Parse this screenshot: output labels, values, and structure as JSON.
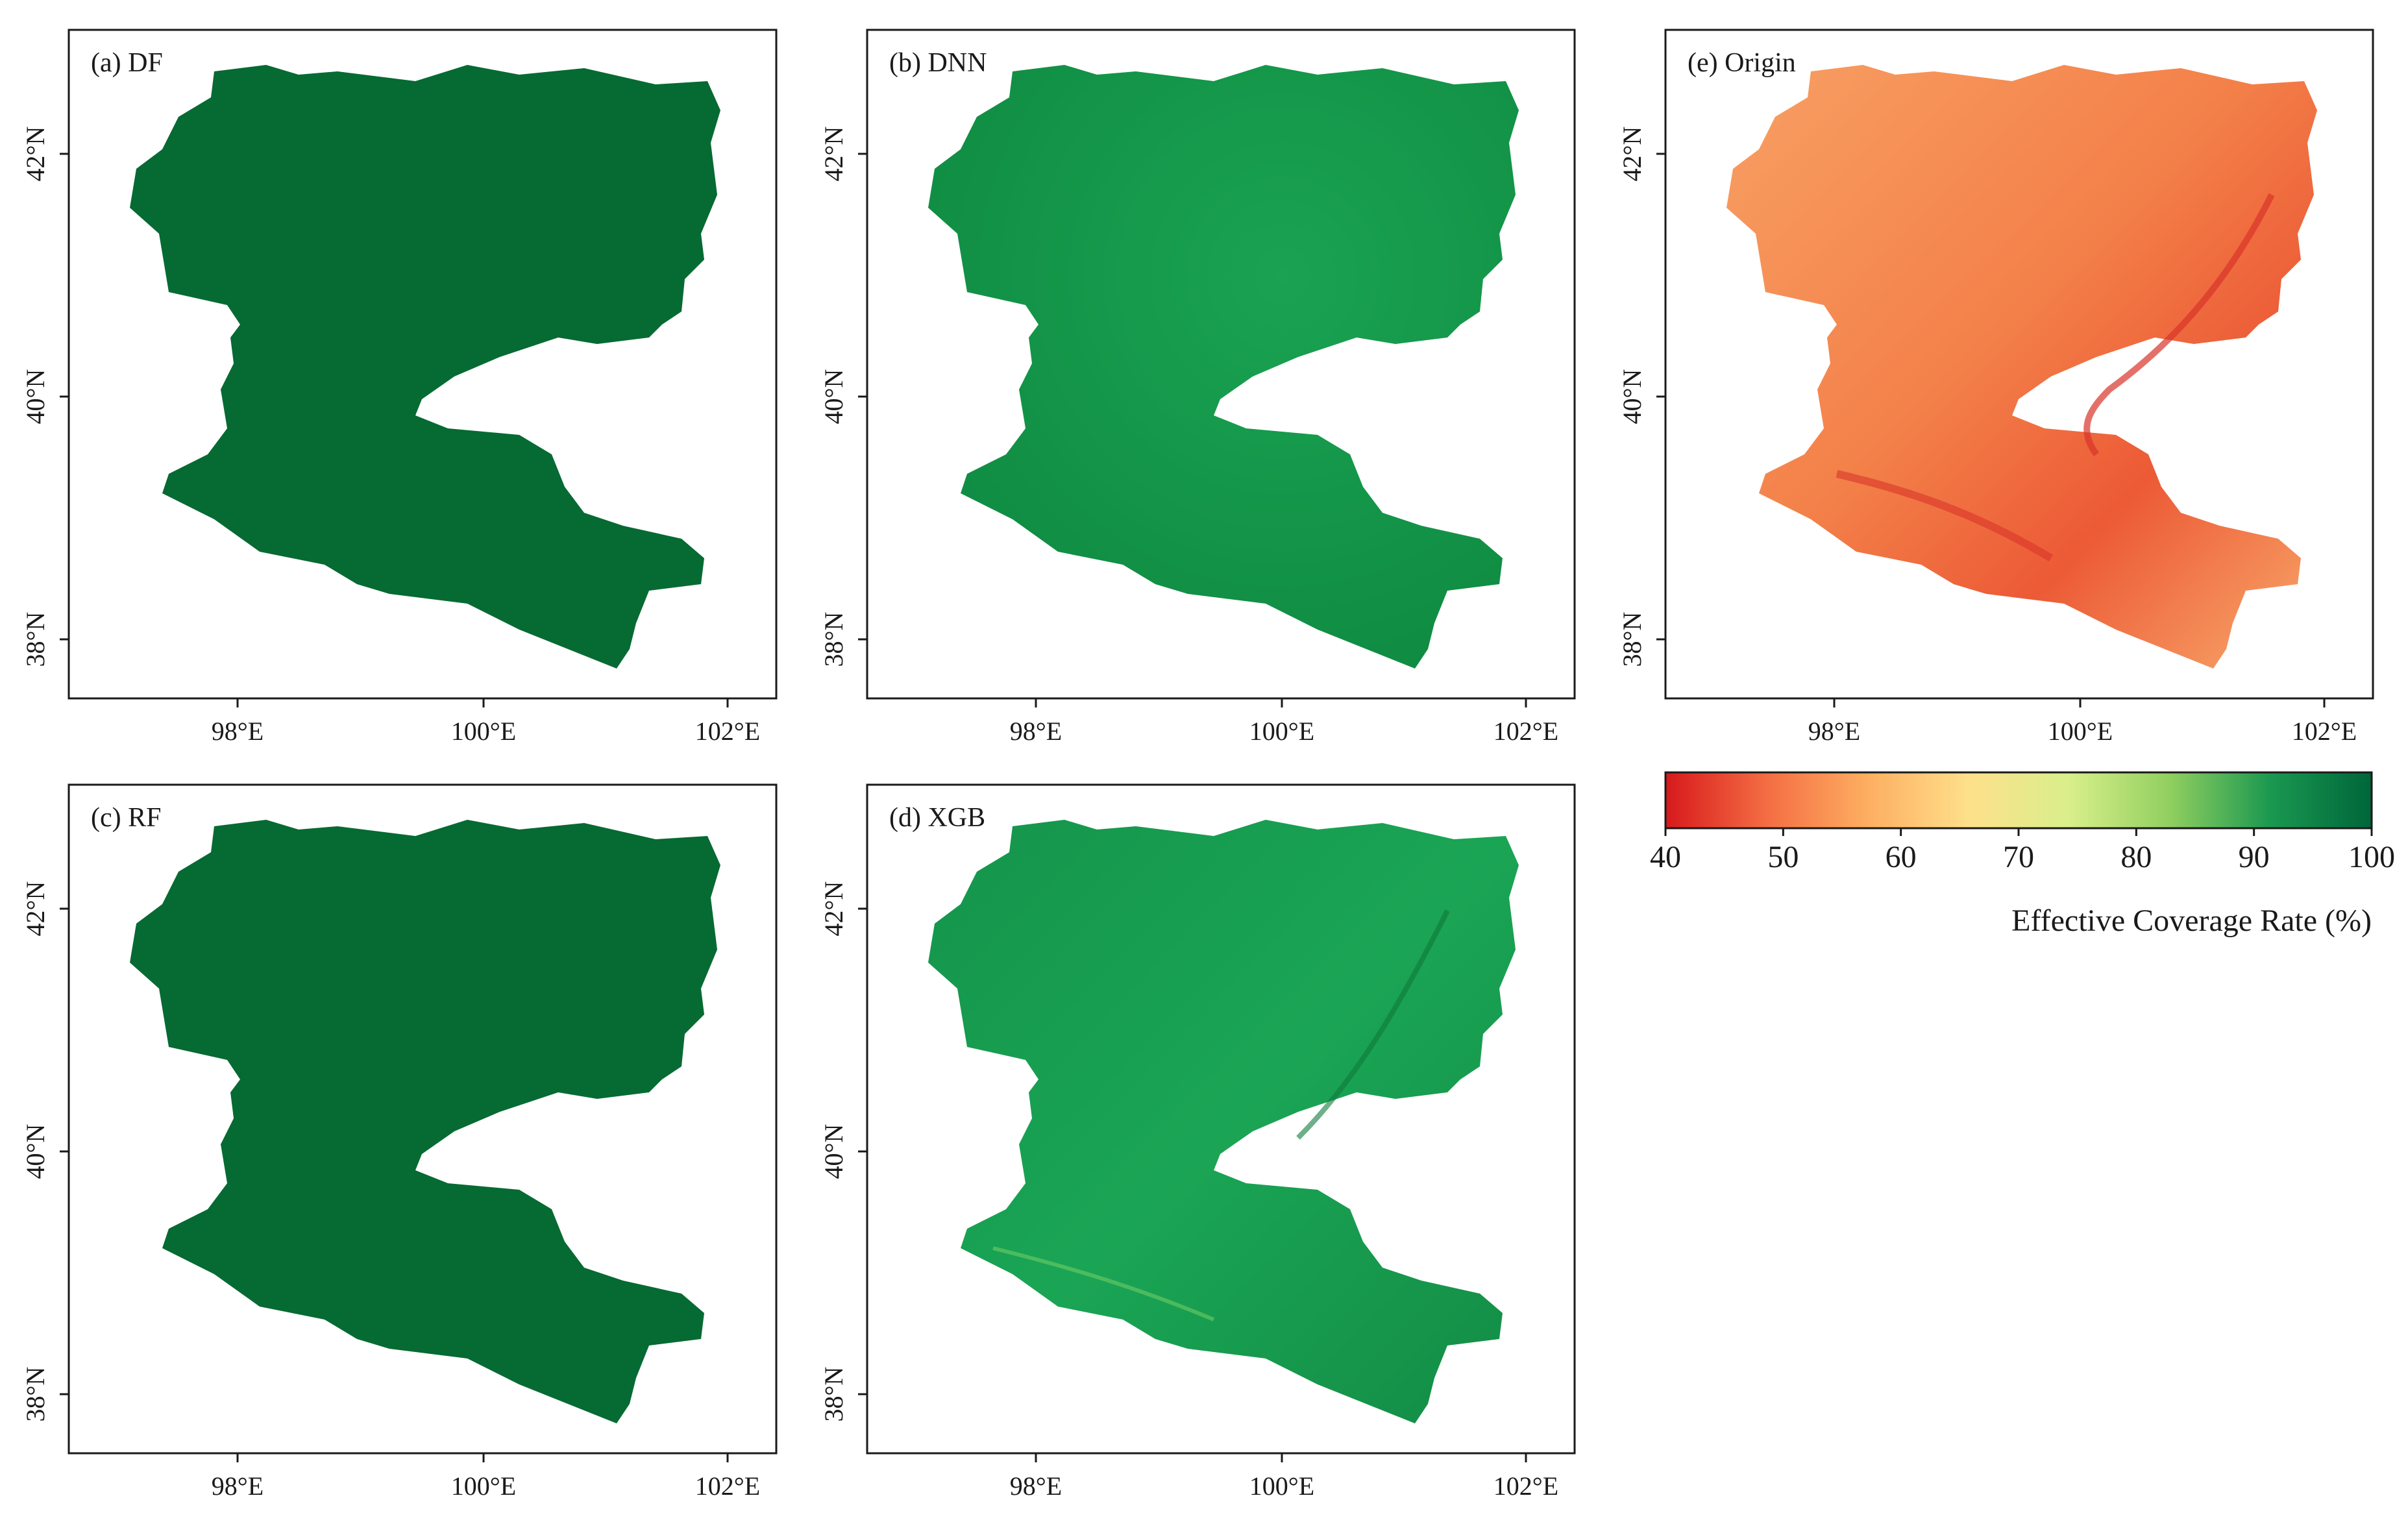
{
  "colors": {
    "df": "#066a33",
    "rf": "#066a33",
    "dnn": "#129a49",
    "xgb": "#15924a",
    "origin": "#f47b47"
  },
  "axes": {
    "lon_ticks": [
      "98°E",
      "100°E",
      "102°E"
    ],
    "lat_ticks": [
      "42°N",
      "40°N",
      "38°N"
    ]
  },
  "panels": [
    {
      "id": "df",
      "label": "(a) DF"
    },
    {
      "id": "dnn",
      "label": "(b) DNN"
    },
    {
      "id": "rf",
      "label": "(c) RF"
    },
    {
      "id": "xgb",
      "label": "(d) XGB"
    },
    {
      "id": "origin",
      "label": "(e) Origin"
    }
  ],
  "colorbar": {
    "title": "Effective Coverage Rate (%)",
    "ticks": [
      "40",
      "50",
      "60",
      "70",
      "80",
      "90",
      "100"
    ],
    "range": [
      40,
      100
    ],
    "stops": [
      "#d7191c",
      "#f46d43",
      "#fdae61",
      "#fee08b",
      "#d9ef8b",
      "#91cf60",
      "#1a9850",
      "#00663a"
    ]
  }
}
